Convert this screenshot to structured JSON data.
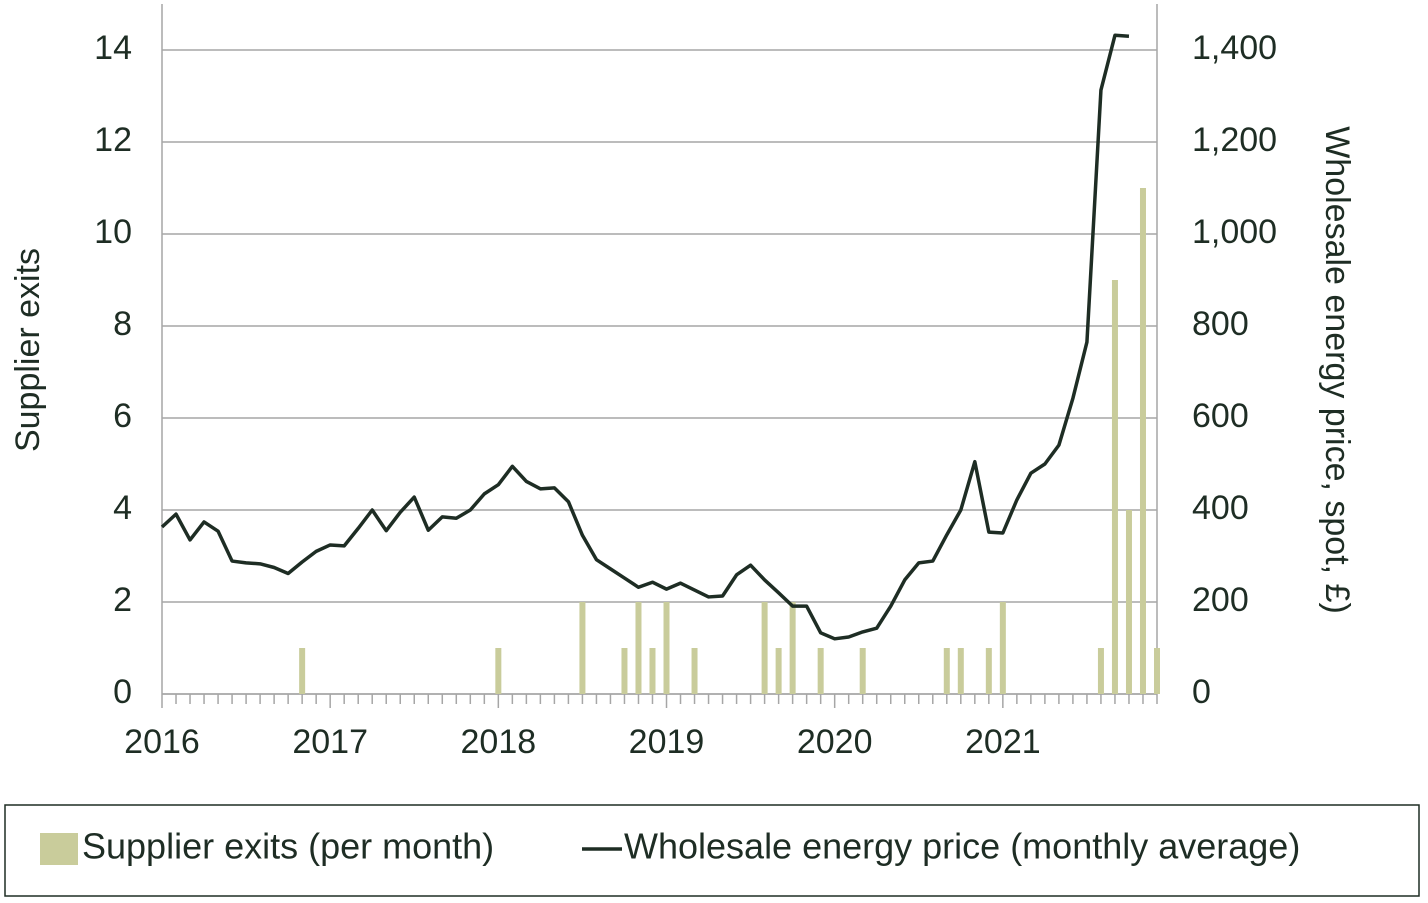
{
  "chart_data": {
    "type": "bar-line",
    "y_label": "Supplier exits",
    "y2_label": "Wholesale energy price, spot, £)",
    "categories": [
      "2016",
      null,
      null,
      null,
      null,
      null,
      null,
      null,
      null,
      null,
      null,
      null,
      "2017",
      null,
      null,
      null,
      null,
      null,
      null,
      null,
      null,
      null,
      null,
      null,
      "2018",
      null,
      null,
      null,
      null,
      null,
      null,
      null,
      null,
      null,
      null,
      null,
      "2019",
      null,
      null,
      null,
      null,
      null,
      null,
      null,
      null,
      null,
      null,
      null,
      "2020",
      null,
      null,
      null,
      null,
      null,
      null,
      null,
      null,
      null,
      null,
      null,
      "2021",
      null,
      null,
      null,
      null,
      null,
      null,
      null,
      null,
      null,
      null,
      null
    ],
    "series": [
      {
        "name": "Supplier exits (per month)",
        "type": "bar",
        "color": "#c9cc9b",
        "values": [
          0,
          0,
          0,
          0,
          0,
          0,
          0,
          0,
          0,
          0,
          1,
          0,
          0,
          0,
          0,
          0,
          0,
          0,
          0,
          0,
          0,
          0,
          0,
          0,
          1,
          0,
          0,
          0,
          0,
          0,
          2,
          0,
          0,
          1,
          2,
          1,
          2,
          0,
          1,
          0,
          0,
          0,
          0,
          2,
          1,
          2,
          0,
          1,
          0,
          0,
          1,
          0,
          0,
          0,
          0,
          0,
          1,
          1,
          0,
          1,
          2,
          0,
          0,
          0,
          0,
          0,
          0,
          1,
          9,
          4,
          11,
          1
        ]
      },
      {
        "name": "Wholesale energy price (monthly average)",
        "type": "line",
        "axis": "y2",
        "color": "#1e2d24",
        "values": [
          363,
          391,
          335,
          374,
          354,
          289,
          285,
          283,
          275,
          262,
          287,
          310,
          324,
          322,
          360,
          400,
          355,
          395,
          428,
          356,
          385,
          382,
          400,
          435,
          455,
          495,
          462,
          446,
          448,
          418,
          345,
          292,
          272,
          252,
          232,
          243,
          228,
          241,
          226,
          211,
          213,
          259,
          280,
          248,
          220,
          191,
          191,
          133,
          120,
          124,
          135,
          143,
          191,
          248,
          285,
          289,
          346,
          400,
          505,
          352,
          350,
          422,
          480,
          500,
          541,
          643,
          765,
          1313,
          1432,
          1430,
          null,
          null
        ]
      }
    ],
    "ylim": [
      0,
      15
    ],
    "yticks": [
      0,
      2,
      4,
      6,
      8,
      10,
      12,
      14
    ],
    "y2lim": [
      0,
      1500
    ],
    "y2ticks": [
      0,
      200,
      400,
      600,
      800,
      {
        "value": 1000,
        "label": "1,000"
      },
      {
        "value": 1200,
        "label": "1,200"
      },
      {
        "value": 1400,
        "label": "1,400"
      }
    ],
    "grid": true,
    "legend": "bottom"
  }
}
